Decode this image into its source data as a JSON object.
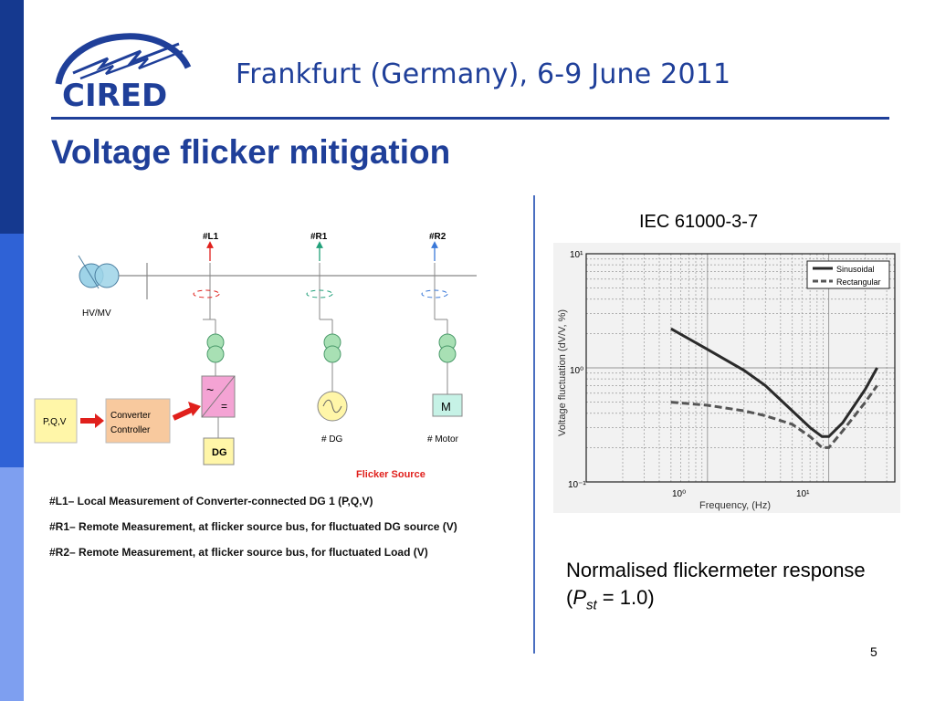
{
  "header": {
    "logo_text": "CIRED",
    "conference": "Frankfurt (Germany), 6-9 June 2011"
  },
  "slide": {
    "title": "Voltage flicker mitigation",
    "page_number": "5"
  },
  "diagram": {
    "meas_labels": [
      "#L1",
      "#R1",
      "#R2"
    ],
    "transformer_label": "HV/MV",
    "pqv_label": "P,Q,V",
    "controller_label_line1": "Converter",
    "controller_label_line2": "Controller",
    "inverter_ac": "~",
    "inverter_dc": "=",
    "dg_box_label": "DG",
    "motor_symbol": "M",
    "dg_caption": "# DG",
    "motor_caption": "# Motor",
    "flicker_source": "Flicker Source",
    "colors": {
      "l1": "#e0201c",
      "r1": "#22a07a",
      "r2": "#3a78d8",
      "arrow_red": "#e0201c"
    }
  },
  "notes": [
    "#L1– Local Measurement of Converter-connected DG 1  (P,Q,V)",
    "#R1– Remote Measurement, at flicker source bus, for fluctuated DG source (V)",
    "#R2– Remote Measurement, at flicker source bus, for fluctuated Load (V)"
  ],
  "right": {
    "standard": "IEC 61000-3-7",
    "caption_line1": "Normalised flickermeter response",
    "caption_open": "(",
    "caption_P": "P",
    "caption_sub": "st",
    "caption_rest": " = 1.0)"
  },
  "chart_data": {
    "type": "line",
    "title": "",
    "xlabel": "Frequency, (Hz)",
    "ylabel": "Voltage fluctuation (dV/V, %)",
    "xscale": "log",
    "yscale": "log",
    "xlim": [
      0.1,
      35
    ],
    "ylim": [
      0.1,
      10
    ],
    "x_ticks": [
      "10⁰",
      "10¹"
    ],
    "y_ticks": [
      "10¹",
      "10⁰",
      "10⁻¹"
    ],
    "grid": true,
    "legend_position": "top-right",
    "series": [
      {
        "name": "Sinusoidal",
        "style": "solid",
        "x": [
          0.5,
          1,
          2,
          3,
          5,
          7,
          8.8,
          10,
          13,
          20,
          25
        ],
        "y": [
          2.2,
          1.45,
          0.95,
          0.7,
          0.42,
          0.3,
          0.25,
          0.25,
          0.33,
          0.65,
          1.0
        ]
      },
      {
        "name": "Rectangular",
        "style": "dashed",
        "x": [
          0.5,
          1,
          2,
          3,
          5,
          7,
          8.8,
          10,
          13,
          20,
          25
        ],
        "y": [
          0.5,
          0.47,
          0.42,
          0.38,
          0.32,
          0.25,
          0.2,
          0.2,
          0.28,
          0.5,
          0.7
        ]
      }
    ]
  }
}
